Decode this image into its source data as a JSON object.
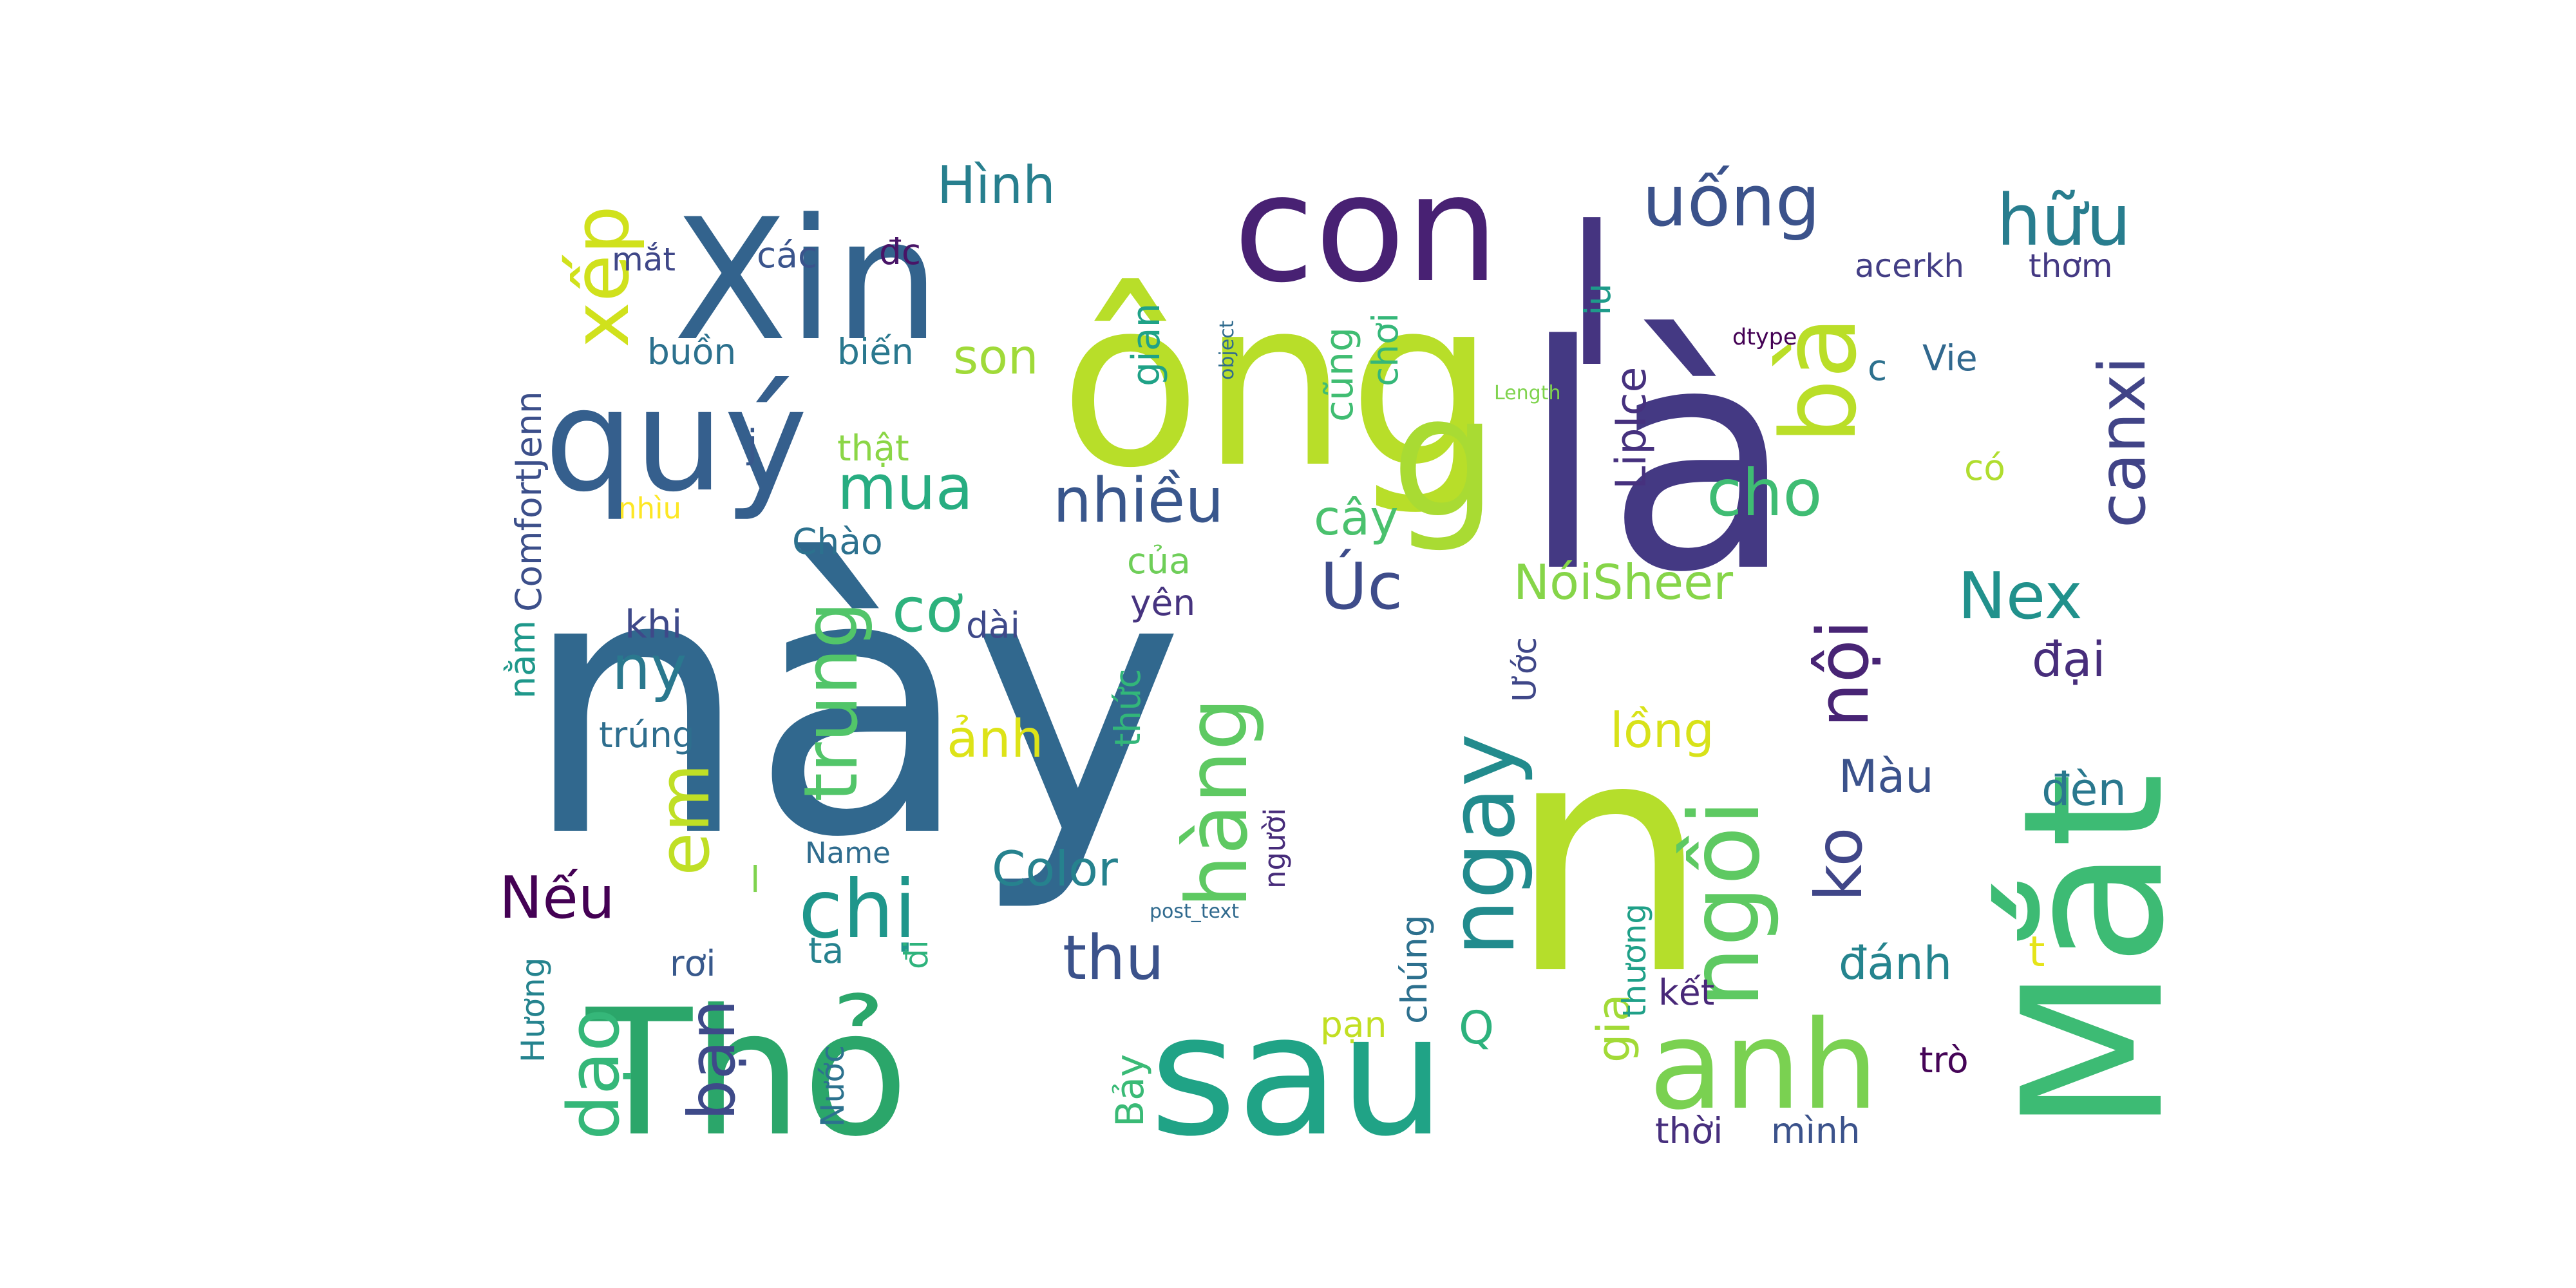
{
  "words": [
    {
      "text": "này",
      "color": "#31688e"
    },
    {
      "text": "Thỏ",
      "color": "#2ba66a"
    },
    {
      "text": "sau",
      "color": "#20a386"
    },
    {
      "text": "n",
      "color": "#b5de2b"
    },
    {
      "text": "Mắt",
      "color": "#3dbb74"
    },
    {
      "text": "là",
      "color": "#443983"
    },
    {
      "text": "l",
      "color": "#453480"
    },
    {
      "text": "ông",
      "color": "#b8de29"
    },
    {
      "text": "g",
      "color": "#a9db33"
    },
    {
      "text": "Xin",
      "color": "#33638d"
    },
    {
      "text": "quý",
      "color": "#355f8d"
    },
    {
      "text": "con",
      "color": "#482173"
    },
    {
      "text": "bà",
      "color": "#bade28"
    },
    {
      "text": "anh",
      "color": "#7ad151"
    },
    {
      "text": "hàng",
      "color": "#5ec962"
    },
    {
      "text": "ngay",
      "color": "#228b8d"
    },
    {
      "text": "ngồi",
      "color": "#5ec962"
    },
    {
      "text": "nội",
      "color": "#482475"
    },
    {
      "text": "ko",
      "color": "#404688"
    },
    {
      "text": "chị",
      "color": "#1f968b"
    },
    {
      "text": "em",
      "color": "#c0df25"
    },
    {
      "text": "trung",
      "color": "#52c569"
    },
    {
      "text": "xếp",
      "color": "#d0e11c"
    },
    {
      "text": "uống",
      "color": "#3b528b"
    },
    {
      "text": "hữu",
      "color": "#287d8e"
    },
    {
      "text": "canxi",
      "color": "#414487"
    },
    {
      "text": "cho",
      "color": "#3fbc73"
    },
    {
      "text": "Nex",
      "color": "#21918c"
    },
    {
      "text": "nhiều",
      "color": "#39568c"
    },
    {
      "text": "mua",
      "color": "#27ad81"
    },
    {
      "text": "Úc",
      "color": "#3e4c8a"
    },
    {
      "text": "thu",
      "color": "#3b528b"
    },
    {
      "text": "cơ",
      "color": "#2db27d"
    },
    {
      "text": "ny",
      "color": "#2a788e"
    },
    {
      "text": "Nếu",
      "color": "#440154"
    },
    {
      "text": "dạo",
      "color": "#35b779"
    },
    {
      "text": "bạn",
      "color": "#3e4a89"
    },
    {
      "text": "Hình",
      "color": "#277f8e"
    },
    {
      "text": "son",
      "color": "#a0da39"
    },
    {
      "text": "Color",
      "color": "#26828e"
    },
    {
      "text": "NóiSheer",
      "color": "#86d549"
    },
    {
      "text": "LipIce",
      "color": "#46317e"
    },
    {
      "text": "lồng",
      "color": "#d8e219"
    },
    {
      "text": "đại",
      "color": "#472d7b"
    },
    {
      "text": "Màu",
      "color": "#3b528b"
    },
    {
      "text": "đèn",
      "color": "#2a788e"
    },
    {
      "text": "đánh",
      "color": "#25848e"
    },
    {
      "text": "t",
      "color": "#e5e419"
    },
    {
      "text": "kết",
      "color": "#482878"
    },
    {
      "text": "trò",
      "color": "#450457"
    },
    {
      "text": "thời",
      "color": "#472f7d"
    },
    {
      "text": "mình",
      "color": "#3b528b"
    },
    {
      "text": "gia",
      "color": "#a2da37"
    },
    {
      "text": "Q",
      "color": "#2db27d"
    },
    {
      "text": "ảnh",
      "color": "#dde318"
    },
    {
      "text": "cây",
      "color": "#4ac16d"
    },
    {
      "text": "ComfortJenn",
      "color": "#3c4f8a"
    },
    {
      "text": "thật",
      "color": "#8bd646"
    },
    {
      "text": "nhìu",
      "color": "#fde725"
    },
    {
      "text": "Chào",
      "color": "#2c718e"
    },
    {
      "text": "khi",
      "color": "#3e4989"
    },
    {
      "text": "trúng",
      "color": "#2e6e8e"
    },
    {
      "text": "dài",
      "color": "#3e4989"
    },
    {
      "text": "của",
      "color": "#6ece58"
    },
    {
      "text": "yên",
      "color": "#46337f"
    },
    {
      "text": "buồn",
      "color": "#2c718e"
    },
    {
      "text": "biến",
      "color": "#2a788e"
    },
    {
      "text": "các",
      "color": "#3a548c"
    },
    {
      "text": "đc",
      "color": "#481467"
    },
    {
      "text": "mắt",
      "color": "#3f4788"
    },
    {
      "text": "j",
      "color": "#38588c"
    },
    {
      "text": "gian",
      "color": "#1fa287"
    },
    {
      "text": "cũng",
      "color": "#40bd72"
    },
    {
      "text": "chơi",
      "color": "#35b779"
    },
    {
      "text": "thức",
      "color": "#32b67a"
    },
    {
      "text": "Ước",
      "color": "#3f4788"
    },
    {
      "text": "người",
      "color": "#472c7a"
    },
    {
      "text": "iu",
      "color": "#1e9b8a"
    },
    {
      "text": "acerkh",
      "color": "#433e85"
    },
    {
      "text": "thơm",
      "color": "#443983"
    },
    {
      "text": "c",
      "color": "#2d718e"
    },
    {
      "text": "Vie",
      "color": "#31688e"
    },
    {
      "text": "có",
      "color": "#b0dd2f"
    },
    {
      "text": "dtype",
      "color": "#440154"
    },
    {
      "text": "Length",
      "color": "#7fd34e"
    },
    {
      "text": "object",
      "color": "#2f6b8e"
    },
    {
      "text": "Name",
      "color": "#2f6c8e"
    },
    {
      "text": "post_text",
      "color": "#306a8e"
    },
    {
      "text": "l",
      "color": "#7fd34e"
    },
    {
      "text": "rơi",
      "color": "#38598c"
    },
    {
      "text": "ta",
      "color": "#26828e"
    },
    {
      "text": "đi",
      "color": "#2eb37c"
    },
    {
      "text": "nằm",
      "color": "#1f988b"
    },
    {
      "text": "Hương",
      "color": "#25838e"
    },
    {
      "text": "Nước",
      "color": "#2c728e"
    },
    {
      "text": "Bảy",
      "color": "#3aba76"
    },
    {
      "text": "pạn",
      "color": "#c2df23"
    },
    {
      "text": "chúng",
      "color": "#2d708e"
    },
    {
      "text": "thương",
      "color": "#1fa088"
    }
  ]
}
